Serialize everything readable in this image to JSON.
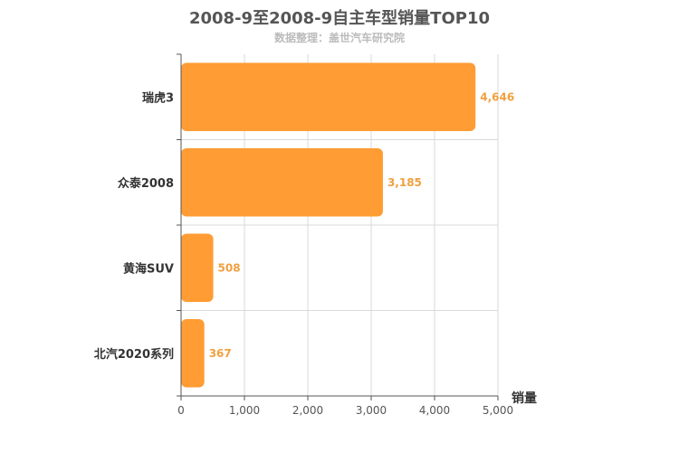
{
  "header": {
    "title": "2008-9至2008-9自主车型销量TOP10",
    "subtitle": "数据整理：盖世汽车研究院"
  },
  "colors": {
    "bar": "#ff9c33",
    "value_label": "#f0a040",
    "grid": "#d9d9d9",
    "axis": "#555555"
  },
  "chart_data": {
    "type": "bar",
    "orientation": "horizontal",
    "title": "2008-9至2008-9自主车型销量TOP10",
    "subtitle": "数据整理：盖世汽车研究院",
    "categories": [
      "瑞虎3",
      "众泰2008",
      "黄海SUV",
      "北汽2020系列"
    ],
    "values": [
      4646,
      3185,
      508,
      367
    ],
    "value_labels": [
      "4,646",
      "3,185",
      "508",
      "367"
    ],
    "xlabel": "销量",
    "ylabel": "",
    "xlim": [
      0,
      5000
    ],
    "ticks": [
      0,
      1000,
      2000,
      3000,
      4000,
      5000
    ],
    "tick_labels": [
      "0",
      "1,000",
      "2,000",
      "3,000",
      "4,000",
      "5,000"
    ],
    "grid": true,
    "legend": "none"
  }
}
